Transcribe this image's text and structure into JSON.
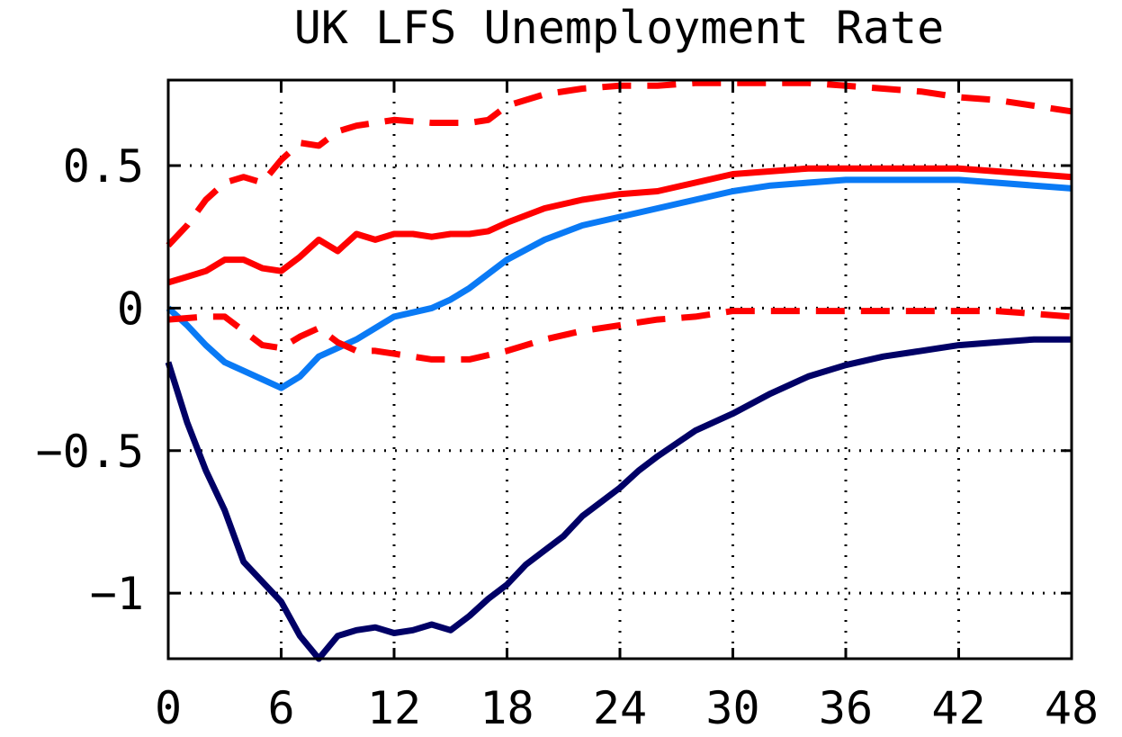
{
  "chart_data": {
    "type": "line",
    "title": "UK LFS Unemployment Rate",
    "xlabel": "",
    "ylabel": "",
    "xlim": [
      0,
      48
    ],
    "ylim": [
      -1.23,
      0.8
    ],
    "x_ticks": [
      0,
      6,
      12,
      18,
      24,
      30,
      36,
      42,
      48
    ],
    "x_tick_labels": [
      "0",
      "6",
      "12",
      "18",
      "24",
      "30",
      "36",
      "42",
      "48"
    ],
    "y_ticks": [
      0.5,
      0,
      -0.5,
      -1
    ],
    "y_tick_labels": [
      "0.5",
      "0",
      "−0.5",
      "−1"
    ],
    "grid": true,
    "legend": "none",
    "series": [
      {
        "color": "#ff0000",
        "style": "dashed",
        "x": [
          0,
          1,
          2,
          3,
          4,
          5,
          6,
          7,
          8,
          9,
          10,
          11,
          12,
          14,
          16,
          17,
          18,
          20,
          22,
          24,
          26,
          28,
          30,
          32,
          34,
          36,
          38,
          40,
          42,
          44,
          46,
          48
        ],
        "values": [
          0.22,
          0.29,
          0.38,
          0.44,
          0.46,
          0.44,
          0.52,
          0.58,
          0.57,
          0.62,
          0.64,
          0.65,
          0.66,
          0.65,
          0.65,
          0.66,
          0.71,
          0.75,
          0.77,
          0.78,
          0.78,
          0.79,
          0.79,
          0.79,
          0.79,
          0.78,
          0.77,
          0.76,
          0.74,
          0.73,
          0.71,
          0.69
        ]
      },
      {
        "color": "#ff0000",
        "style": "solid",
        "x": [
          0,
          1,
          2,
          3,
          4,
          5,
          6,
          7,
          8,
          9,
          10,
          11,
          12,
          13,
          14,
          15,
          16,
          17,
          18,
          20,
          22,
          24,
          26,
          28,
          30,
          32,
          34,
          36,
          38,
          40,
          42,
          44,
          46,
          48
        ],
        "values": [
          0.09,
          0.11,
          0.13,
          0.17,
          0.17,
          0.14,
          0.13,
          0.18,
          0.24,
          0.2,
          0.26,
          0.24,
          0.26,
          0.26,
          0.25,
          0.26,
          0.26,
          0.27,
          0.3,
          0.35,
          0.38,
          0.4,
          0.41,
          0.44,
          0.47,
          0.48,
          0.49,
          0.49,
          0.49,
          0.49,
          0.49,
          0.48,
          0.47,
          0.46
        ]
      },
      {
        "color": "#0a7af5",
        "style": "solid",
        "x": [
          0,
          1,
          2,
          3,
          4,
          5,
          6,
          7,
          8,
          10,
          12,
          14,
          15,
          16,
          18,
          20,
          22,
          24,
          26,
          28,
          30,
          32,
          34,
          36,
          38,
          40,
          42,
          44,
          46,
          48
        ],
        "values": [
          0.0,
          -0.06,
          -0.13,
          -0.19,
          -0.22,
          -0.25,
          -0.28,
          -0.24,
          -0.17,
          -0.11,
          -0.03,
          0.0,
          0.03,
          0.07,
          0.17,
          0.24,
          0.29,
          0.32,
          0.35,
          0.38,
          0.41,
          0.43,
          0.44,
          0.45,
          0.45,
          0.45,
          0.45,
          0.44,
          0.43,
          0.42
        ]
      },
      {
        "color": "#ff0000",
        "style": "dashed",
        "x": [
          0,
          2,
          3,
          4,
          5,
          6,
          7,
          8,
          9,
          10,
          11,
          12,
          14,
          16,
          18,
          20,
          22,
          24,
          26,
          28,
          30,
          32,
          34,
          36,
          38,
          40,
          42,
          44,
          46,
          48
        ],
        "values": [
          -0.04,
          -0.03,
          -0.03,
          -0.08,
          -0.13,
          -0.14,
          -0.1,
          -0.07,
          -0.12,
          -0.15,
          -0.15,
          -0.16,
          -0.18,
          -0.18,
          -0.15,
          -0.11,
          -0.08,
          -0.06,
          -0.04,
          -0.03,
          -0.01,
          -0.01,
          -0.01,
          -0.01,
          -0.01,
          -0.01,
          -0.01,
          -0.01,
          -0.02,
          -0.03
        ]
      },
      {
        "color": "#000066",
        "style": "solid",
        "x": [
          0,
          1,
          2,
          3,
          4,
          5,
          6,
          7,
          8,
          9,
          10,
          11,
          12,
          13,
          14,
          15,
          16,
          17,
          18,
          19,
          20,
          21,
          22,
          23,
          24,
          25,
          26,
          28,
          30,
          32,
          34,
          36,
          38,
          40,
          42,
          44,
          46,
          48
        ],
        "values": [
          -0.19,
          -0.4,
          -0.57,
          -0.71,
          -0.89,
          -0.96,
          -1.03,
          -1.15,
          -1.23,
          -1.15,
          -1.13,
          -1.12,
          -1.14,
          -1.13,
          -1.11,
          -1.13,
          -1.08,
          -1.02,
          -0.97,
          -0.9,
          -0.85,
          -0.8,
          -0.73,
          -0.68,
          -0.63,
          -0.57,
          -0.52,
          -0.43,
          -0.37,
          -0.3,
          -0.24,
          -0.2,
          -0.17,
          -0.15,
          -0.13,
          -0.12,
          -0.11,
          -0.11
        ]
      }
    ]
  }
}
